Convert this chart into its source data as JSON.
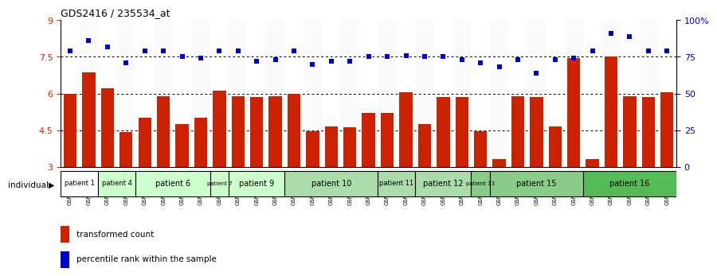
{
  "title": "GDS2416 / 235534_at",
  "samples": [
    "GSM135233",
    "GSM135234",
    "GSM135260",
    "GSM135232",
    "GSM135235",
    "GSM135236",
    "GSM135231",
    "GSM135242",
    "GSM135243",
    "GSM135251",
    "GSM135252",
    "GSM135244",
    "GSM135259",
    "GSM135254",
    "GSM135255",
    "GSM135261",
    "GSM135229",
    "GSM135230",
    "GSM135245",
    "GSM135246",
    "GSM135258",
    "GSM135247",
    "GSM135250",
    "GSM135237",
    "GSM135238",
    "GSM135239",
    "GSM135256",
    "GSM135257",
    "GSM135240",
    "GSM135248",
    "GSM135253",
    "GSM135241",
    "GSM135249"
  ],
  "bar_values": [
    6.0,
    6.85,
    6.2,
    4.42,
    5.0,
    5.9,
    4.75,
    5.0,
    6.1,
    5.9,
    5.85,
    5.9,
    6.0,
    4.45,
    4.65,
    4.6,
    5.2,
    5.2,
    6.05,
    4.75,
    5.85,
    5.85,
    4.45,
    3.3,
    5.9,
    5.85,
    4.65,
    7.45,
    3.3,
    7.5,
    5.9,
    5.85,
    6.05
  ],
  "percentile_values": [
    79,
    86,
    82,
    71,
    79,
    79,
    75,
    74,
    79,
    79,
    72,
    73,
    79,
    70,
    72,
    72,
    75,
    75,
    76,
    75,
    75,
    73,
    71,
    68,
    73,
    64,
    73,
    74,
    79,
    91,
    89,
    79,
    79
  ],
  "ylim_left": [
    3,
    9
  ],
  "ylim_right": [
    0,
    100
  ],
  "yticks_left": [
    3,
    4.5,
    6,
    7.5,
    9
  ],
  "ytick_labels_left": [
    "3",
    "4.5",
    "6",
    "7.5",
    "9"
  ],
  "yticks_right": [
    0,
    25,
    50,
    75,
    100
  ],
  "ytick_labels_right": [
    "0",
    "25",
    "50",
    "75",
    "100%"
  ],
  "hlines": [
    4.5,
    6.0,
    7.5
  ],
  "bar_color": "#cc2200",
  "dot_color": "#0000cc",
  "bar_width": 0.7,
  "patient_groups": [
    {
      "label": "patient 1",
      "start": 0,
      "end": 2,
      "color": "#ffffff"
    },
    {
      "label": "patient 4",
      "start": 2,
      "end": 4,
      "color": "#ccffcc"
    },
    {
      "label": "patient 6",
      "start": 4,
      "end": 8,
      "color": "#ccffcc"
    },
    {
      "label": "patient 7",
      "start": 8,
      "end": 9,
      "color": "#ccffcc"
    },
    {
      "label": "patient 9",
      "start": 9,
      "end": 12,
      "color": "#ccffcc"
    },
    {
      "label": "patient 10",
      "start": 12,
      "end": 17,
      "color": "#aaddaa"
    },
    {
      "label": "patient 11",
      "start": 17,
      "end": 19,
      "color": "#aaddaa"
    },
    {
      "label": "patient 12",
      "start": 19,
      "end": 22,
      "color": "#aaddaa"
    },
    {
      "label": "patient 13",
      "start": 22,
      "end": 23,
      "color": "#88cc88"
    },
    {
      "label": "patient 15",
      "start": 23,
      "end": 28,
      "color": "#88cc88"
    },
    {
      "label": "patient 16",
      "start": 28,
      "end": 33,
      "color": "#55bb55"
    }
  ]
}
